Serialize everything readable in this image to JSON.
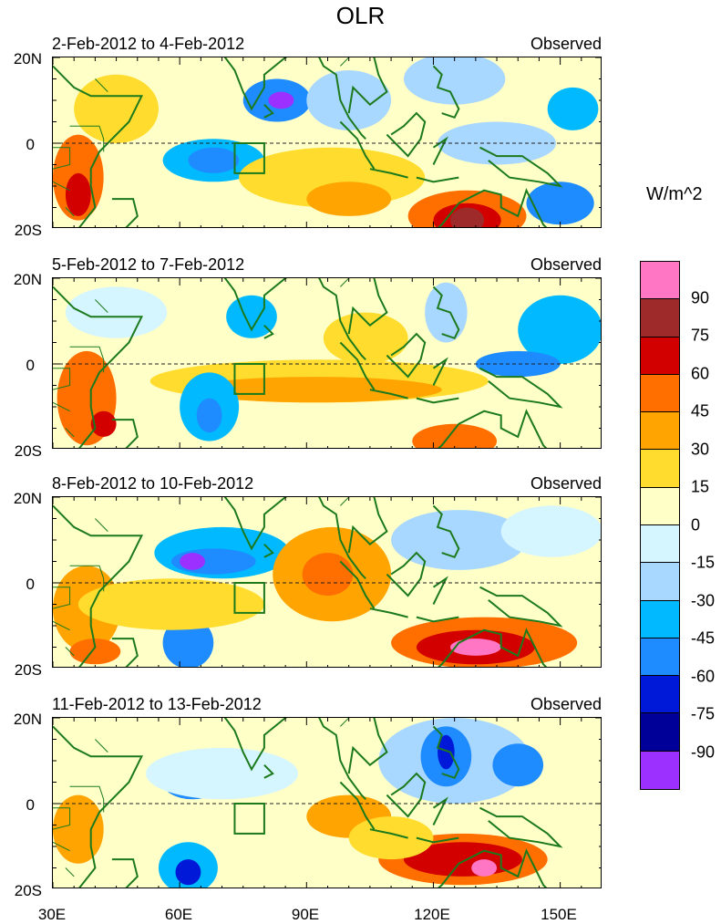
{
  "chart_data": {
    "type": "heatmap",
    "title": "OLR",
    "units_label": "W/m^2",
    "x_range": [
      30,
      160
    ],
    "y_range": [
      -20,
      20
    ],
    "x_ticks": [
      "30E",
      "60E",
      "90E",
      "120E",
      "150E"
    ],
    "y_ticks": [
      "20N",
      "0",
      "20S"
    ],
    "panels": [
      {
        "left_title": "2-Feb-2012 to 4-Feb-2012",
        "right_title": "Observed",
        "blobs": [
          {
            "lon": 83,
            "lat": 10,
            "rx": 8,
            "ry": 5,
            "v": -60
          },
          {
            "lon": 84,
            "lat": 10,
            "rx": 3,
            "ry": 2,
            "v": -90
          },
          {
            "lon": 68,
            "lat": -4,
            "rx": 12,
            "ry": 5,
            "v": -45
          },
          {
            "lon": 68,
            "lat": -4,
            "rx": 6,
            "ry": 3,
            "v": -60
          },
          {
            "lon": 100,
            "lat": 10,
            "rx": 10,
            "ry": 7,
            "v": -30
          },
          {
            "lon": 125,
            "lat": 15,
            "rx": 12,
            "ry": 6,
            "v": -30
          },
          {
            "lon": 153,
            "lat": 8,
            "rx": 6,
            "ry": 5,
            "v": -45
          },
          {
            "lon": 150,
            "lat": -14,
            "rx": 8,
            "ry": 5,
            "v": -60
          },
          {
            "lon": 135,
            "lat": 0,
            "rx": 14,
            "ry": 5,
            "v": -30
          },
          {
            "lon": 128,
            "lat": -17,
            "rx": 14,
            "ry": 6,
            "v": 45
          },
          {
            "lon": 128,
            "lat": -18,
            "rx": 8,
            "ry": 4,
            "v": 60
          },
          {
            "lon": 128,
            "lat": -18,
            "rx": 4,
            "ry": 3,
            "v": 75
          },
          {
            "lon": 36,
            "lat": -8,
            "rx": 6,
            "ry": 10,
            "v": 45
          },
          {
            "lon": 36,
            "lat": -12,
            "rx": 3,
            "ry": 5,
            "v": 60
          },
          {
            "lon": 45,
            "lat": 8,
            "rx": 10,
            "ry": 8,
            "v": 15
          },
          {
            "lon": 96,
            "lat": -8,
            "rx": 22,
            "ry": 7,
            "v": 15
          },
          {
            "lon": 100,
            "lat": -13,
            "rx": 10,
            "ry": 4,
            "v": 30
          }
        ]
      },
      {
        "left_title": "5-Feb-2012 to 7-Feb-2012",
        "right_title": "Observed",
        "blobs": [
          {
            "lon": 93,
            "lat": -4,
            "rx": 40,
            "ry": 5,
            "v": 15
          },
          {
            "lon": 92,
            "lat": -6,
            "rx": 30,
            "ry": 3,
            "v": 30
          },
          {
            "lon": 38,
            "lat": -8,
            "rx": 7,
            "ry": 11,
            "v": 45
          },
          {
            "lon": 42,
            "lat": -14,
            "rx": 3,
            "ry": 3,
            "v": 60
          },
          {
            "lon": 67,
            "lat": -10,
            "rx": 7,
            "ry": 8,
            "v": -45
          },
          {
            "lon": 67,
            "lat": -12,
            "rx": 3,
            "ry": 4,
            "v": -60
          },
          {
            "lon": 77,
            "lat": 11,
            "rx": 6,
            "ry": 5,
            "v": -45
          },
          {
            "lon": 150,
            "lat": 8,
            "rx": 10,
            "ry": 8,
            "v": -45
          },
          {
            "lon": 140,
            "lat": 0,
            "rx": 10,
            "ry": 3,
            "v": -60
          },
          {
            "lon": 123,
            "lat": 12,
            "rx": 5,
            "ry": 7,
            "v": -30
          },
          {
            "lon": 125,
            "lat": -18,
            "rx": 10,
            "ry": 4,
            "v": 45
          },
          {
            "lon": 45,
            "lat": 12,
            "rx": 12,
            "ry": 6,
            "v": -15
          },
          {
            "lon": 104,
            "lat": 6,
            "rx": 10,
            "ry": 6,
            "v": 15
          }
        ]
      },
      {
        "left_title": "8-Feb-2012 to 10-Feb-2012",
        "right_title": "Observed",
        "blobs": [
          {
            "lon": 70,
            "lat": 7,
            "rx": 16,
            "ry": 6,
            "v": -45
          },
          {
            "lon": 68,
            "lat": 5,
            "rx": 10,
            "ry": 3,
            "v": -60
          },
          {
            "lon": 63,
            "lat": 5,
            "rx": 3,
            "ry": 2,
            "v": -90
          },
          {
            "lon": 62,
            "lat": -14,
            "rx": 6,
            "ry": 6,
            "v": -60
          },
          {
            "lon": 96,
            "lat": 2,
            "rx": 14,
            "ry": 11,
            "v": 30
          },
          {
            "lon": 95,
            "lat": 2,
            "rx": 6,
            "ry": 5,
            "v": 45
          },
          {
            "lon": 132,
            "lat": -14,
            "rx": 22,
            "ry": 6,
            "v": 45
          },
          {
            "lon": 130,
            "lat": -15,
            "rx": 14,
            "ry": 4,
            "v": 60
          },
          {
            "lon": 130,
            "lat": -15,
            "rx": 6,
            "ry": 2,
            "v": 90
          },
          {
            "lon": 38,
            "lat": -6,
            "rx": 8,
            "ry": 10,
            "v": 30
          },
          {
            "lon": 40,
            "lat": -16,
            "rx": 6,
            "ry": 3,
            "v": 45
          },
          {
            "lon": 126,
            "lat": 10,
            "rx": 16,
            "ry": 7,
            "v": -30
          },
          {
            "lon": 148,
            "lat": 12,
            "rx": 12,
            "ry": 6,
            "v": -15
          },
          {
            "lon": 58,
            "lat": -5,
            "rx": 22,
            "ry": 6,
            "v": 15
          }
        ]
      },
      {
        "left_title": "11-Feb-2012 to 13-Feb-2012",
        "right_title": "Observed",
        "blobs": [
          {
            "lon": 125,
            "lat": 10,
            "rx": 18,
            "ry": 10,
            "v": -30
          },
          {
            "lon": 123,
            "lat": 11,
            "rx": 6,
            "ry": 7,
            "v": -60
          },
          {
            "lon": 123,
            "lat": 12,
            "rx": 2,
            "ry": 4,
            "v": -75
          },
          {
            "lon": 140,
            "lat": 9,
            "rx": 6,
            "ry": 5,
            "v": -60
          },
          {
            "lon": 63,
            "lat": 5,
            "rx": 7,
            "ry": 4,
            "v": -60
          },
          {
            "lon": 62,
            "lat": -15,
            "rx": 7,
            "ry": 6,
            "v": -45
          },
          {
            "lon": 62,
            "lat": -16,
            "rx": 3,
            "ry": 3,
            "v": -75
          },
          {
            "lon": 127,
            "lat": -13,
            "rx": 20,
            "ry": 6,
            "v": 45
          },
          {
            "lon": 127,
            "lat": -13,
            "rx": 14,
            "ry": 4,
            "v": 60
          },
          {
            "lon": 132,
            "lat": -15,
            "rx": 3,
            "ry": 2,
            "v": 90
          },
          {
            "lon": 100,
            "lat": -3,
            "rx": 10,
            "ry": 5,
            "v": 30
          },
          {
            "lon": 36,
            "lat": -6,
            "rx": 6,
            "ry": 8,
            "v": 30
          },
          {
            "lon": 70,
            "lat": 7,
            "rx": 18,
            "ry": 6,
            "v": -15
          },
          {
            "lon": 110,
            "lat": -8,
            "rx": 10,
            "ry": 5,
            "v": 15
          }
        ]
      }
    ],
    "colorbar": {
      "levels": [
        "90",
        "75",
        "60",
        "45",
        "30",
        "15",
        "0",
        "-15",
        "-30",
        "-45",
        "-60",
        "-75",
        "-90"
      ],
      "colors": [
        "#ff77c4",
        "#9e2a2a",
        "#d30000",
        "#ff6f00",
        "#ffa400",
        "#ffdc2e",
        "#ffffc8",
        "#d5f5ff",
        "#a8d7ff",
        "#00b9ff",
        "#1e8cff",
        "#0018d8",
        "#000099",
        "#9b30ff"
      ]
    },
    "box": {
      "lon": [
        73,
        80
      ],
      "lat": [
        -7,
        0
      ]
    }
  }
}
